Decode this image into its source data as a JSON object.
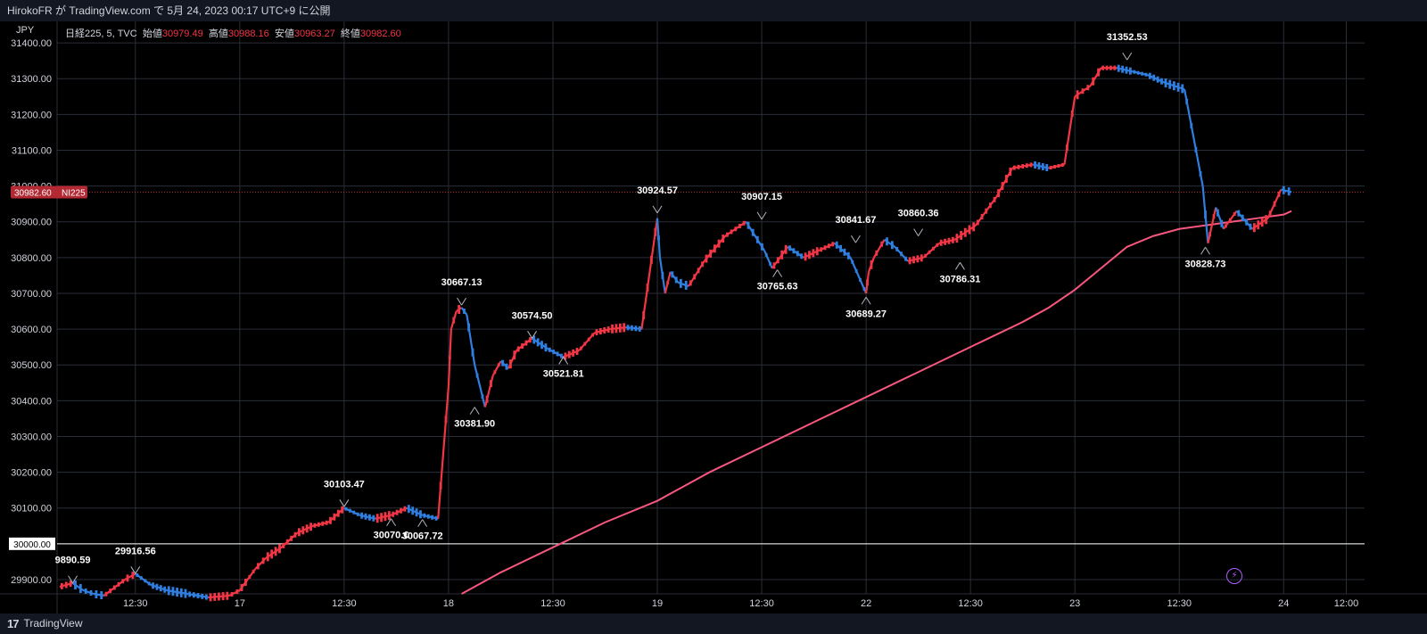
{
  "header": {
    "title": "HirokoFR が TradingView.com で 5月 24, 2023 00:17 UTC+9 に公開"
  },
  "footer": {
    "brand": "TradingView",
    "logo_text": "17"
  },
  "currency": "JPY",
  "legend": {
    "symbol": "日経225, 5, TVC",
    "open_label": "始値",
    "open": "30979.49",
    "high_label": "高値",
    "high": "30988.16",
    "low_label": "安値",
    "low": "30963.27",
    "close_label": "終値",
    "close": "30982.60"
  },
  "price_tag": {
    "price": "30982.60",
    "symbol": "NI225",
    "color": "#b22833"
  },
  "level_line": {
    "price": "30000.00",
    "value": 30000
  },
  "colors": {
    "up": "#f23645",
    "down": "#2f7fe0",
    "ma": "#f7577e",
    "grid": "#2a2e39",
    "bolt": "#b15bff"
  },
  "icons": [
    "lightning-icon"
  ],
  "chart_data": {
    "type": "line",
    "title": "",
    "ylim": [
      29860,
      31460
    ],
    "yticks": [
      29900,
      30000,
      30100,
      30200,
      30300,
      30400,
      30500,
      30600,
      30700,
      30800,
      30900,
      31000,
      31100,
      31200,
      31300,
      31400
    ],
    "ytick_labels": [
      "29900.00",
      "30000.00",
      "30100.00",
      "30200.00",
      "30300.00",
      "30400.00",
      "30500.00",
      "30600.00",
      "30700.00",
      "30800.00",
      "30900.00",
      "31000.00",
      "31100.00",
      "31200.00",
      "31300.00",
      "31400.00"
    ],
    "xticks": [
      {
        "label": "12:30",
        "x": 1.5
      },
      {
        "label": "17",
        "x": 3.5
      },
      {
        "label": "12:30",
        "x": 5.5
      },
      {
        "label": "18",
        "x": 7.5
      },
      {
        "label": "12:30",
        "x": 9.5
      },
      {
        "label": "19",
        "x": 11.5
      },
      {
        "label": "12:30",
        "x": 13.5
      },
      {
        "label": "22",
        "x": 15.5
      },
      {
        "label": "12:30",
        "x": 17.5
      },
      {
        "label": "23",
        "x": 19.5
      },
      {
        "label": "12:30",
        "x": 21.5
      },
      {
        "label": "24",
        "x": 23.5
      },
      {
        "label": "12:00",
        "x": 24.7
      }
    ],
    "price_path": {
      "name": "",
      "x": [
        0.05,
        0.3,
        0.5,
        0.7,
        0.9,
        1.3,
        1.5,
        1.8,
        2.1,
        2.5,
        2.9,
        3.3,
        3.5,
        3.65,
        3.8,
        4.0,
        4.3,
        4.6,
        4.9,
        5.2,
        5.5,
        5.8,
        6.1,
        6.4,
        6.7,
        7.0,
        7.3,
        7.5,
        7.55,
        7.65,
        7.75,
        7.85,
        8.0,
        8.2,
        8.35,
        8.5,
        8.65,
        8.8,
        9.1,
        9.4,
        9.7,
        10.0,
        10.3,
        10.6,
        10.9,
        11.2,
        11.5,
        11.55,
        11.65,
        11.75,
        11.9,
        12.1,
        12.4,
        12.8,
        13.2,
        13.55,
        13.7,
        13.85,
        14.0,
        14.3,
        14.6,
        14.9,
        15.2,
        15.5,
        15.55,
        15.65,
        15.85,
        16.05,
        16.3,
        16.6,
        16.9,
        17.2,
        17.6,
        18.0,
        18.3,
        18.7,
        19.0,
        19.3,
        19.5,
        19.6,
        19.8,
        20.0,
        20.3,
        20.6,
        20.9,
        21.2,
        21.6,
        21.95,
        22.05,
        22.2,
        22.35,
        22.6,
        22.9,
        23.2,
        23.45,
        23.65
      ],
      "y": [
        29880,
        29890,
        29870,
        29860,
        29855,
        29900,
        29916,
        29885,
        29870,
        29860,
        29850,
        29855,
        29870,
        29900,
        29930,
        29960,
        29990,
        30030,
        30050,
        30060,
        30100,
        30080,
        30070,
        30080,
        30100,
        30080,
        30070,
        30440,
        30600,
        30650,
        30660,
        30640,
        30500,
        30382,
        30470,
        30510,
        30490,
        30540,
        30574,
        30545,
        30522,
        30540,
        30590,
        30600,
        30605,
        30600,
        30910,
        30800,
        30700,
        30760,
        30730,
        30720,
        30790,
        30860,
        30900,
        30820,
        30770,
        30800,
        30830,
        30800,
        30820,
        30840,
        30800,
        30700,
        30760,
        30800,
        30850,
        30830,
        30790,
        30800,
        30840,
        30850,
        30890,
        30970,
        31050,
        31060,
        31050,
        31060,
        31250,
        31260,
        31280,
        31330,
        31330,
        31320,
        31310,
        31290,
        31270,
        31000,
        30840,
        30940,
        30880,
        30930,
        30880,
        30910,
        30990,
        30983
      ]
    },
    "moving_average": {
      "name": "",
      "x": [
        7.75,
        8.5,
        9.5,
        10.5,
        11.5,
        12.5,
        13.5,
        14.5,
        15.5,
        16.5,
        17.5,
        18.5,
        19.0,
        19.5,
        20.0,
        20.5,
        21.0,
        21.5,
        22.0,
        22.5,
        23.0,
        23.5,
        23.65
      ],
      "y": [
        29860,
        29920,
        29990,
        30060,
        30120,
        30200,
        30270,
        30340,
        30410,
        30480,
        30550,
        30620,
        30660,
        30710,
        30770,
        30830,
        30860,
        30880,
        30890,
        30900,
        30910,
        30920,
        30930
      ]
    },
    "annotations": [
      {
        "text": "9890.59",
        "x": 0.3,
        "y": 29890.59,
        "pos": "above"
      },
      {
        "text": "29916.56",
        "x": 1.5,
        "y": 29916.56,
        "pos": "above"
      },
      {
        "text": "30103.47",
        "x": 5.5,
        "y": 30103.47,
        "pos": "above"
      },
      {
        "text": "30070.€",
        "x": 6.4,
        "y": 30070,
        "pos": "below"
      },
      {
        "text": "30067.72",
        "x": 7.0,
        "y": 30067.72,
        "pos": "below"
      },
      {
        "text": "30667.13",
        "x": 7.75,
        "y": 30667.13,
        "pos": "above"
      },
      {
        "text": "30381.90",
        "x": 8.0,
        "y": 30381.9,
        "pos": "below"
      },
      {
        "text": "30574.50",
        "x": 9.1,
        "y": 30574.5,
        "pos": "above"
      },
      {
        "text": "30521.81",
        "x": 9.7,
        "y": 30521.81,
        "pos": "below"
      },
      {
        "text": "30924.57",
        "x": 11.5,
        "y": 30924.57,
        "pos": "above"
      },
      {
        "text": "30907.15",
        "x": 13.5,
        "y": 30907.15,
        "pos": "above"
      },
      {
        "text": "30765.63",
        "x": 13.8,
        "y": 30765.63,
        "pos": "below"
      },
      {
        "text": "30841.67",
        "x": 15.3,
        "y": 30841.67,
        "pos": "above"
      },
      {
        "text": "30689.27",
        "x": 15.5,
        "y": 30689.27,
        "pos": "below"
      },
      {
        "text": "30860.36",
        "x": 16.5,
        "y": 30860.36,
        "pos": "above"
      },
      {
        "text": "30786.31",
        "x": 17.3,
        "y": 30786.31,
        "pos": "below"
      },
      {
        "text": "31352.53",
        "x": 20.5,
        "y": 31352.53,
        "pos": "above"
      },
      {
        "text": "30828.73",
        "x": 22.0,
        "y": 30828.73,
        "pos": "below"
      }
    ]
  }
}
